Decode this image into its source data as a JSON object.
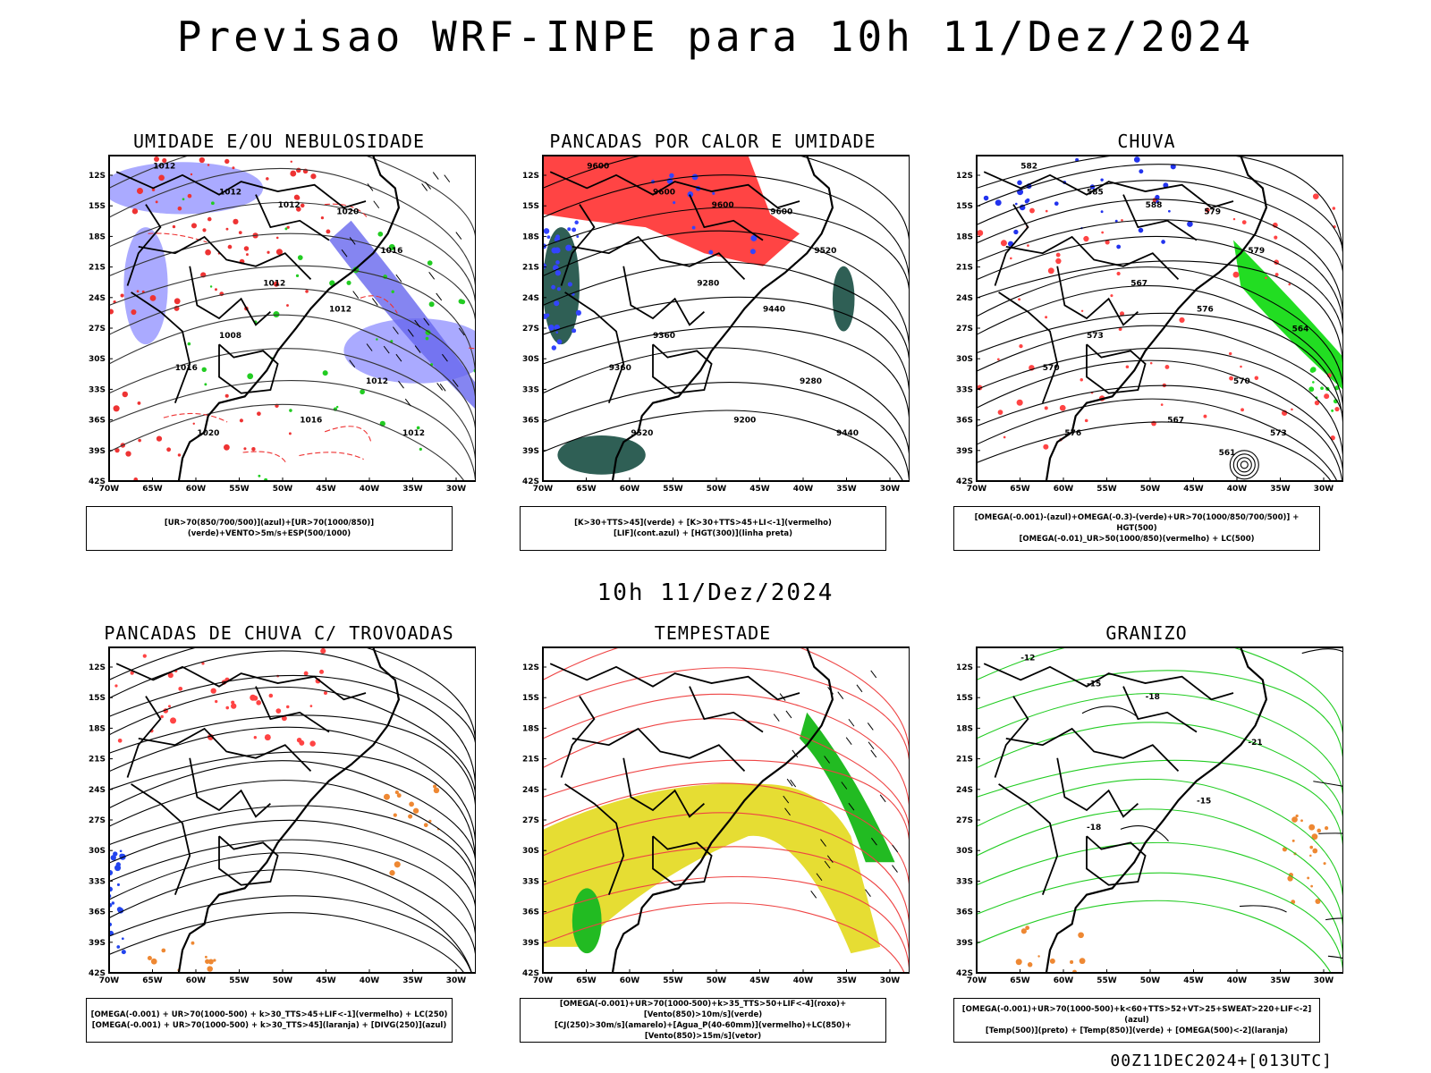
{
  "header": {
    "title": "Previsao WRF-INPE  para 10h 11/Dez/2024",
    "mid_title": "10h 11/Dez/2024",
    "footer": "00Z11DEC2024+[013UTC]"
  },
  "axes": {
    "lat_ticks": [
      "12S",
      "15S",
      "18S",
      "21S",
      "24S",
      "27S",
      "30S",
      "33S",
      "36S",
      "39S",
      "42S"
    ],
    "lon_ticks": [
      "70W",
      "65W",
      "60W",
      "55W",
      "50W",
      "45W",
      "40W",
      "35W",
      "30W"
    ]
  },
  "panels": [
    {
      "title": "UMIDADE E/OU NEBULOSIDADE",
      "legend": [
        "[UR>70(850/700/500)](azul)+[UR>70(1000/850)](verde)+VENTO>5m/s+ESP(500/1000)"
      ],
      "contour_labels": [
        "1012",
        "1012",
        "1012",
        "1016",
        "1012",
        "1008",
        "1012",
        "1016",
        "1020",
        "1020",
        "1012",
        "1016",
        "1012"
      ],
      "colors": {
        "blue": "#6666ee",
        "light_blue": "#aaaaff",
        "green": "#22cc22",
        "red": "#ee3333"
      }
    },
    {
      "title": "PANCADAS POR CALOR E UMIDADE",
      "legend": [
        "[K>30+TTS>45](verde) + [K>30+TTS>45+LI<-1](vermelho)",
        "[LIF](cont.azul) + [HGT(300)](linha preta)"
      ],
      "contour_labels": [
        "9600",
        "9600",
        "9600",
        "9520",
        "9440",
        "9360",
        "9280",
        "9200",
        "9600",
        "9520",
        "9440",
        "9360",
        "9280"
      ],
      "colors": {
        "red": "#ff4444",
        "dark_green": "#2f5f55",
        "blue": "#3344ff"
      }
    },
    {
      "title": "CHUVA",
      "legend": [
        "[OMEGA(-0.001)-(azul)+OMEGA(-0.3)-(verde)+UR>70(1000/850/700/500)] + HGT(500)",
        "[OMEGA(-0.01)_UR>50(1000/850)(vermelho) + LC(500)"
      ],
      "contour_labels": [
        "582",
        "585",
        "588",
        "579",
        "576",
        "573",
        "570",
        "567",
        "579",
        "576",
        "573",
        "570",
        "567",
        "564",
        "561"
      ],
      "colors": {
        "red": "#ff4444",
        "green": "#22dd22",
        "blue": "#2233ee"
      }
    },
    {
      "title": "PANCADAS DE CHUVA C/ TROVOADAS",
      "legend": [
        "[OMEGA(-0.001) + UR>70(1000-500) + k>30_TTS>45+LIF<-1](vermelho) + LC(250)",
        "[OMEGA(-0.001) + UR>70(1000-500) + k>30_TTS>45](laranja) + [DIVG(250)](azul)"
      ],
      "contour_labels": [],
      "colors": {
        "red": "#ff4444",
        "orange": "#ee8833",
        "blue": "#2244ee"
      }
    },
    {
      "title": "TEMPESTADE",
      "legend": [
        "[OMEGA(-0.001)+UR>70(1000-500)+k>35_TTS>50+LIF<-4](roxo)+[Vento(850)>10m/s](verde)",
        "[CJ(250)>30m/s](amarelo)+[Agua_P(40-60mm)](vermelho)+LC(850)+[Vento(850)>15m/s](vetor)"
      ],
      "contour_labels": [],
      "colors": {
        "yellow": "#e6dd33",
        "green": "#22bb22",
        "red": "#ee4444"
      }
    },
    {
      "title": "GRANIZO",
      "legend": [
        "[OMEGA(-0.001)+UR>70(1000-500)+k<60+TTS>52+VT>25+SWEAT>220+LIF<-2](azul)",
        "[Temp(500)](preto) + [Temp(850)](verde) + [OMEGA(500)<-2](laranja)"
      ],
      "contour_labels": [
        "-12",
        "-15",
        "-18",
        "-21",
        "-15",
        "-18"
      ],
      "colors": {
        "green": "#22cc22",
        "orange": "#ee8833"
      }
    }
  ]
}
